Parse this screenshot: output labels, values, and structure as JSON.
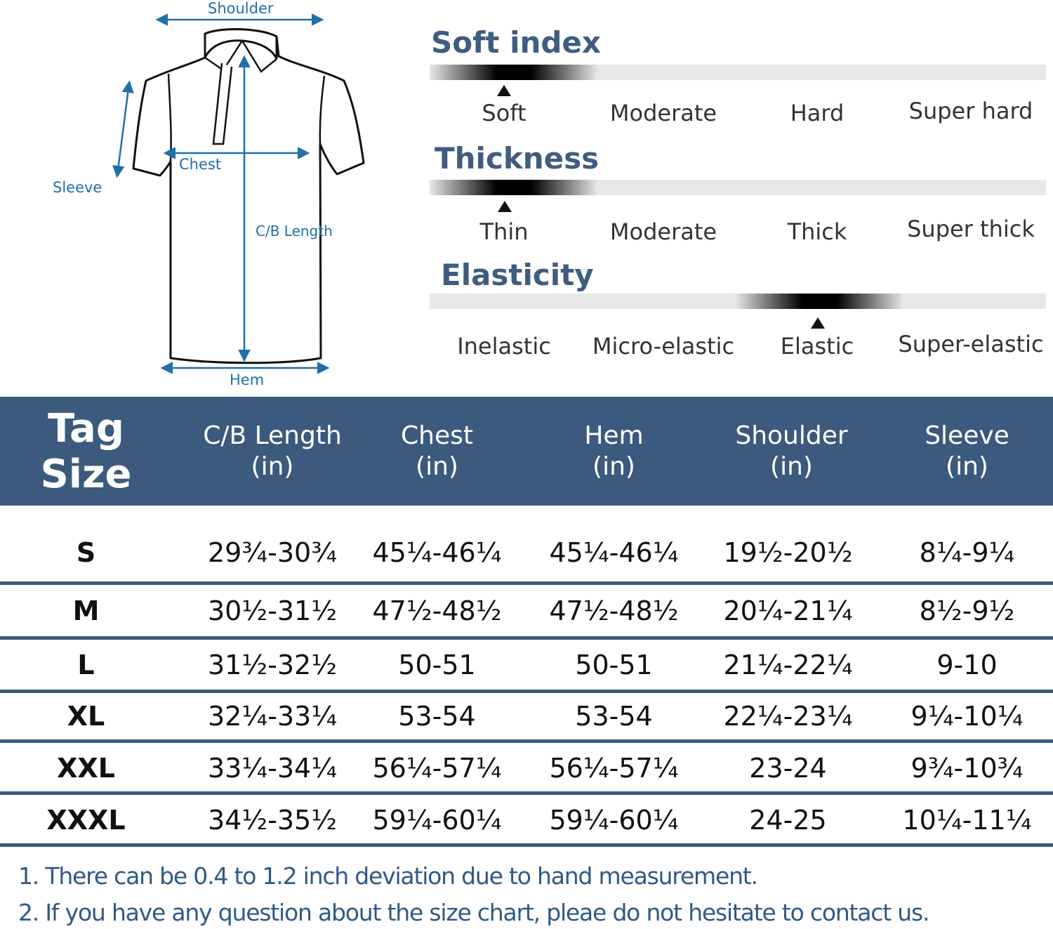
{
  "diagram": {
    "shoulder_label": "Shoulder",
    "chest_label": "Chest",
    "sleeve_label": "Sleeve",
    "length_label": "C/B Length",
    "hem_label": "Hem",
    "accent_color": "#1f6fa8"
  },
  "scales": [
    {
      "title": "Soft index",
      "options": [
        "Soft",
        "Moderate",
        "Hard",
        "Super hard"
      ],
      "selected_index": 0
    },
    {
      "title": "Thickness",
      "options": [
        "Thin",
        "Moderate",
        "Thick",
        "Super thick"
      ],
      "selected_index": 0
    },
    {
      "title": "Elasticity",
      "options": [
        "Inelastic",
        "Micro-elastic",
        "Elastic",
        "Super-elastic"
      ],
      "selected_index": 2
    }
  ],
  "table": {
    "header_color": "#3b5a7d",
    "tag_header": "Tag Size",
    "columns": [
      {
        "name": "C/B Length",
        "unit": "(in)"
      },
      {
        "name": "Chest",
        "unit": "(in)"
      },
      {
        "name": "Hem",
        "unit": "(in)"
      },
      {
        "name": "Shoulder",
        "unit": "(in)"
      },
      {
        "name": "Sleeve",
        "unit": "(in)"
      }
    ],
    "rows": [
      {
        "size": "S",
        "cells": [
          "29¾-30¾",
          "45¼-46¼",
          "45¼-46¼",
          "19½-20½",
          "8¼-9¼"
        ]
      },
      {
        "size": "M",
        "cells": [
          "30½-31½",
          "47½-48½",
          "47½-48½",
          "20¼-21¼",
          "8½-9½"
        ]
      },
      {
        "size": "L",
        "cells": [
          "31½-32½",
          "50-51",
          "50-51",
          "21¼-22¼",
          "9-10"
        ]
      },
      {
        "size": "XL",
        "cells": [
          "32¼-33¼",
          "53-54",
          "53-54",
          "22¼-23¼",
          "9¼-10¼"
        ]
      },
      {
        "size": "XXL",
        "cells": [
          "33¼-34¼",
          "56¼-57¼",
          "56¼-57¼",
          "23-24",
          "9¾-10¾"
        ]
      },
      {
        "size": "XXXL",
        "cells": [
          "34½-35½",
          "59¼-60¼",
          "59¼-60¼",
          "24-25",
          "10¼-11¼"
        ]
      }
    ]
  },
  "notes": [
    "1. There can be 0.4 to 1.2 inch deviation due to hand measurement.",
    "2. If you have any question about the size chart, pleae do not hesitate to contact us."
  ]
}
